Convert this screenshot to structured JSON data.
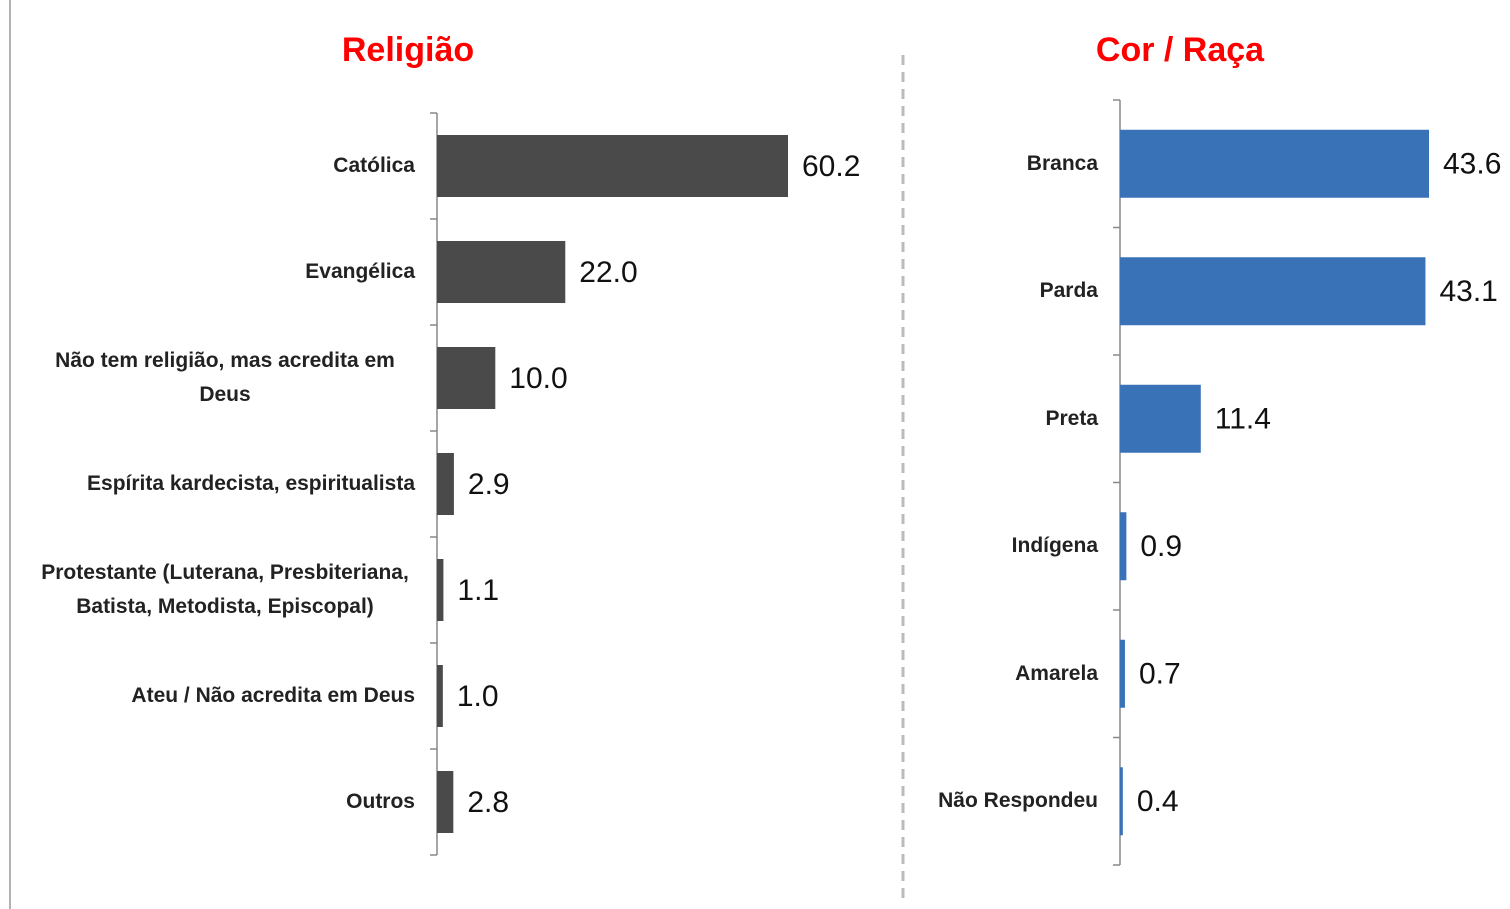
{
  "chart_data": [
    {
      "type": "bar",
      "orientation": "horizontal",
      "title": "Religião",
      "categories": [
        "Católica",
        "Evangélica",
        "Não tem religião, mas acredita em Deus",
        "Espírita kardecista, espiritualista",
        "Protestante (Luterana, Presbiteriana, Batista, Metodista, Episcopal)",
        "Ateu / Não acredita em Deus",
        "Outros"
      ],
      "values": [
        60.2,
        22.0,
        10.0,
        2.9,
        1.1,
        1.0,
        2.8
      ],
      "value_labels": [
        "60.2",
        "22.0",
        "10.0",
        "2.9",
        "1.1",
        "1.0",
        "2.8"
      ],
      "color": "#4a4a4a"
    },
    {
      "type": "bar",
      "orientation": "horizontal",
      "title": "Cor / Raça",
      "categories": [
        "Branca",
        "Parda",
        "Preta",
        "Indígena",
        "Amarela",
        "Não Respondeu"
      ],
      "values": [
        43.6,
        43.1,
        11.4,
        0.9,
        0.7,
        0.4
      ],
      "value_labels": [
        "43.6",
        "43.1",
        "11.4",
        "0.9",
        "0.7",
        "0.4"
      ],
      "color": "#3a72b8"
    }
  ]
}
